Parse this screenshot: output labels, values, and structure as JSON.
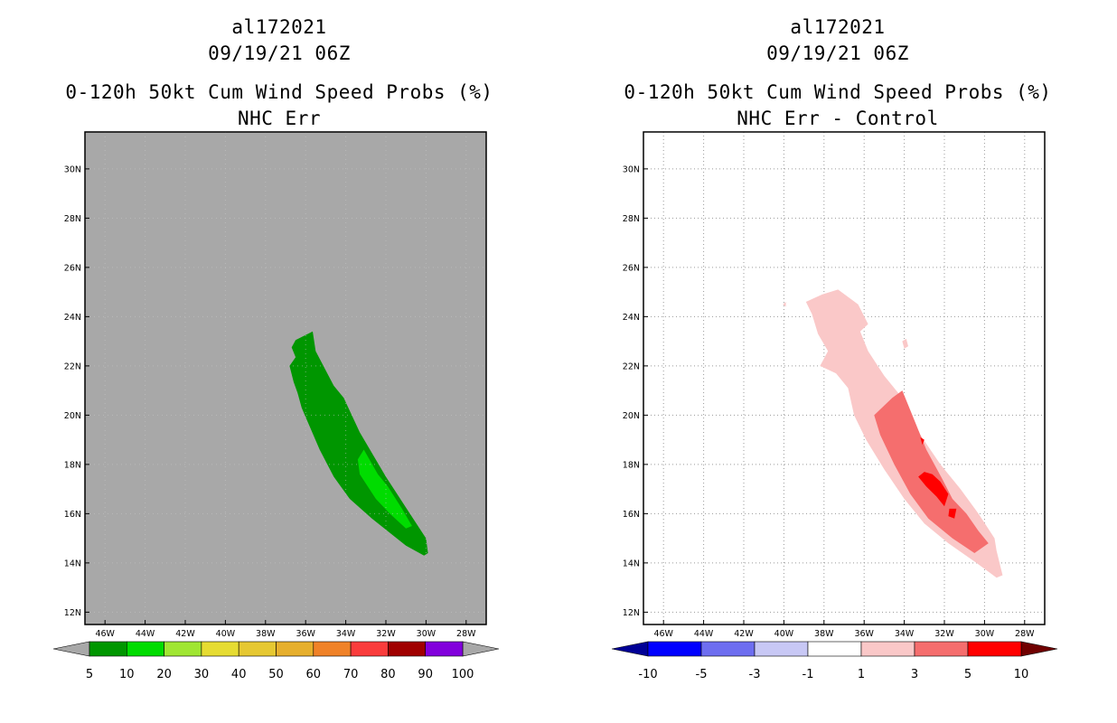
{
  "chart_data": [
    {
      "type": "heatmap",
      "storm_id": "al172021",
      "datetime": "09/19/21 06Z",
      "title": "0-120h 50kt Cum Wind Speed Probs (%)",
      "subtitle": "NHC Err",
      "xlim": [
        -47,
        -27
      ],
      "ylim": [
        11.5,
        31.5
      ],
      "x_ticks": [
        -46,
        -44,
        -42,
        -40,
        -38,
        -36,
        -34,
        -32,
        -30,
        -28
      ],
      "x_tick_labels": [
        "46W",
        "44W",
        "42W",
        "40W",
        "38W",
        "36W",
        "34W",
        "32W",
        "30W",
        "28W"
      ],
      "y_ticks": [
        12,
        14,
        16,
        18,
        20,
        22,
        24,
        26,
        28,
        30
      ],
      "y_tick_labels": [
        "12N",
        "14N",
        "16N",
        "18N",
        "20N",
        "22N",
        "24N",
        "26N",
        "28N",
        "30N"
      ],
      "background": "#a8a8a8",
      "colorbar": {
        "labels": [
          "5",
          "10",
          "20",
          "30",
          "40",
          "50",
          "60",
          "70",
          "80",
          "90",
          "100"
        ],
        "colors": [
          "#009600",
          "#00dc00",
          "#a0e632",
          "#e6dc32",
          "#e6c832",
          "#e6af2d",
          "#f08228",
          "#fa3c3c",
          "#a00000",
          "#8200dc"
        ],
        "left_end": "#a8a8a8",
        "right_end": "#a8a8a8"
      },
      "regions": [
        {
          "category": "5-10",
          "color": "#009600",
          "coords": [
            [
              -35.65,
              23.4
            ],
            [
              -36.5,
              23.05
            ],
            [
              -36.7,
              22.75
            ],
            [
              -36.5,
              22.35
            ],
            [
              -36.8,
              22.0
            ],
            [
              -36.6,
              21.35
            ],
            [
              -36.4,
              20.9
            ],
            [
              -36.2,
              20.3
            ],
            [
              -35.3,
              18.6
            ],
            [
              -34.6,
              17.5
            ],
            [
              -33.8,
              16.6
            ],
            [
              -32.7,
              15.8
            ],
            [
              -31.0,
              14.7
            ],
            [
              -30.1,
              14.3
            ],
            [
              -29.9,
              14.4
            ],
            [
              -30.0,
              15.0
            ],
            [
              -30.8,
              16.0
            ],
            [
              -32.0,
              17.5
            ],
            [
              -33.3,
              19.3
            ],
            [
              -34.1,
              20.7
            ],
            [
              -34.6,
              21.2
            ],
            [
              -35.5,
              22.6
            ]
          ]
        },
        {
          "category": "10-20",
          "color": "#00dc00",
          "coords": [
            [
              -33.1,
              18.6
            ],
            [
              -33.4,
              18.2
            ],
            [
              -33.3,
              17.6
            ],
            [
              -32.5,
              16.6
            ],
            [
              -31.8,
              16.0
            ],
            [
              -31.0,
              15.4
            ],
            [
              -30.7,
              15.5
            ],
            [
              -31.2,
              16.2
            ],
            [
              -31.9,
              17.1
            ],
            [
              -32.4,
              17.6
            ]
          ]
        }
      ]
    },
    {
      "type": "heatmap",
      "storm_id": "al172021",
      "datetime": "09/19/21 06Z",
      "title": "0-120h 50kt Cum Wind Speed Probs (%)",
      "subtitle": "NHC Err - Control",
      "xlim": [
        -47,
        -27
      ],
      "ylim": [
        11.5,
        31.5
      ],
      "x_ticks": [
        -46,
        -44,
        -42,
        -40,
        -38,
        -36,
        -34,
        -32,
        -30,
        -28
      ],
      "x_tick_labels": [
        "46W",
        "44W",
        "42W",
        "40W",
        "38W",
        "36W",
        "34W",
        "32W",
        "30W",
        "28W"
      ],
      "y_ticks": [
        12,
        14,
        16,
        18,
        20,
        22,
        24,
        26,
        28,
        30
      ],
      "y_tick_labels": [
        "12N",
        "14N",
        "16N",
        "18N",
        "20N",
        "22N",
        "24N",
        "26N",
        "28N",
        "30N"
      ],
      "background": "#ffffff",
      "grid": true,
      "colorbar": {
        "labels": [
          "-10",
          "-5",
          "-3",
          "-1",
          "1",
          "3",
          "5",
          "10"
        ],
        "colors": [
          "#0000ff",
          "#6e6ef0",
          "#c8c8f5",
          "#ffffff",
          "#fac8c8",
          "#f56e6e",
          "#ff0000"
        ],
        "left_end": "#000096",
        "right_end": "#700000"
      },
      "regions": [
        {
          "category": "1-3",
          "color": "#fac8c8",
          "coords": [
            [
              -38.9,
              24.6
            ],
            [
              -38.1,
              24.9
            ],
            [
              -37.3,
              25.1
            ],
            [
              -36.3,
              24.5
            ],
            [
              -35.8,
              23.7
            ],
            [
              -36.2,
              23.4
            ],
            [
              -35.8,
              22.6
            ],
            [
              -35.0,
              21.6
            ],
            [
              -34.0,
              20.6
            ],
            [
              -33.2,
              19.2
            ],
            [
              -32.2,
              18.0
            ],
            [
              -31.2,
              17.0
            ],
            [
              -30.3,
              16.0
            ],
            [
              -29.5,
              15.0
            ],
            [
              -29.4,
              14.5
            ],
            [
              -29.1,
              13.5
            ],
            [
              -29.4,
              13.4
            ],
            [
              -30.4,
              14.0
            ],
            [
              -31.8,
              14.8
            ],
            [
              -33.0,
              15.6
            ],
            [
              -34.0,
              16.6
            ],
            [
              -35.0,
              17.8
            ],
            [
              -35.9,
              19.0
            ],
            [
              -36.5,
              20.0
            ],
            [
              -36.8,
              21.1
            ],
            [
              -37.4,
              21.7
            ],
            [
              -38.2,
              22.0
            ],
            [
              -37.8,
              22.6
            ],
            [
              -38.3,
              23.3
            ],
            [
              -38.6,
              24.1
            ]
          ]
        },
        {
          "category": "1-3",
          "color": "#fac8c8",
          "coords": [
            [
              -40.05,
              24.5
            ],
            [
              -39.9,
              24.6
            ],
            [
              -39.9,
              24.4
            ]
          ]
        },
        {
          "category": "1-3",
          "color": "#fac8c8",
          "coords": [
            [
              -34.1,
              23.0
            ],
            [
              -33.9,
              23.1
            ],
            [
              -33.8,
              22.8
            ],
            [
              -34.0,
              22.7
            ]
          ]
        },
        {
          "category": "3-5",
          "color": "#f56e6e",
          "coords": [
            [
              -35.5,
              20.0
            ],
            [
              -34.6,
              20.7
            ],
            [
              -34.1,
              21.0
            ],
            [
              -33.5,
              19.8
            ],
            [
              -32.9,
              18.6
            ],
            [
              -32.1,
              17.4
            ],
            [
              -31.6,
              16.6
            ],
            [
              -30.9,
              16.0
            ],
            [
              -30.3,
              15.3
            ],
            [
              -29.8,
              14.8
            ],
            [
              -30.5,
              14.4
            ],
            [
              -31.6,
              15.0
            ],
            [
              -32.8,
              15.8
            ],
            [
              -33.7,
              16.8
            ],
            [
              -34.5,
              18.0
            ],
            [
              -35.2,
              19.2
            ]
          ]
        },
        {
          "category": "5-10",
          "color": "#ff0000",
          "coords": [
            [
              -33.0,
              17.7
            ],
            [
              -32.6,
              17.6
            ],
            [
              -32.2,
              17.3
            ],
            [
              -31.8,
              16.8
            ],
            [
              -32.0,
              16.3
            ],
            [
              -32.4,
              16.7
            ],
            [
              -32.9,
              17.1
            ],
            [
              -33.3,
              17.5
            ]
          ]
        },
        {
          "category": "5-10",
          "color": "#ff0000",
          "coords": [
            [
              -31.75,
              16.2
            ],
            [
              -31.4,
              16.2
            ],
            [
              -31.5,
              15.8
            ],
            [
              -31.8,
              15.9
            ]
          ]
        },
        {
          "category": "5-10",
          "color": "#ff0000",
          "coords": [
            [
              -33.2,
              19.1
            ],
            [
              -33.0,
              19.0
            ],
            [
              -33.1,
              18.8
            ]
          ]
        }
      ]
    }
  ]
}
